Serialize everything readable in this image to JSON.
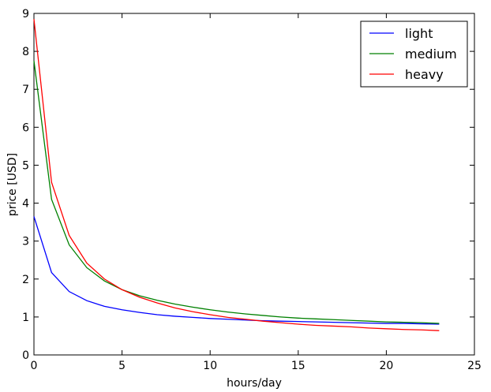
{
  "chart_data": {
    "type": "line",
    "xlabel": "hours/day",
    "ylabel": "price [USD]",
    "xlim": [
      0,
      25
    ],
    "ylim": [
      0,
      9
    ],
    "xticks": [
      0,
      5,
      10,
      15,
      20,
      25
    ],
    "yticks": [
      0,
      1,
      2,
      3,
      4,
      5,
      6,
      7,
      8,
      9
    ],
    "grid": false,
    "legend_position": "top-right",
    "x": [
      0,
      1,
      2,
      3,
      4,
      5,
      6,
      7,
      8,
      9,
      10,
      11,
      12,
      13,
      14,
      15,
      16,
      17,
      18,
      19,
      20,
      21,
      22,
      23
    ],
    "series": [
      {
        "name": "light",
        "color": "#0000ff",
        "values": [
          3.65,
          2.17,
          1.67,
          1.43,
          1.28,
          1.19,
          1.12,
          1.06,
          1.02,
          0.99,
          0.96,
          0.94,
          0.92,
          0.9,
          0.89,
          0.88,
          0.87,
          0.86,
          0.85,
          0.84,
          0.83,
          0.83,
          0.82,
          0.81
        ]
      },
      {
        "name": "medium",
        "color": "#008000",
        "values": [
          7.75,
          4.1,
          2.9,
          2.3,
          1.95,
          1.72,
          1.56,
          1.44,
          1.34,
          1.26,
          1.19,
          1.13,
          1.08,
          1.04,
          1.0,
          0.97,
          0.95,
          0.93,
          0.91,
          0.89,
          0.87,
          0.86,
          0.85,
          0.83
        ]
      },
      {
        "name": "heavy",
        "color": "#ff0000",
        "values": [
          8.85,
          4.55,
          3.15,
          2.42,
          2.0,
          1.72,
          1.52,
          1.37,
          1.24,
          1.14,
          1.06,
          0.99,
          0.94,
          0.89,
          0.85,
          0.81,
          0.78,
          0.76,
          0.74,
          0.71,
          0.69,
          0.67,
          0.66,
          0.64
        ]
      }
    ]
  }
}
